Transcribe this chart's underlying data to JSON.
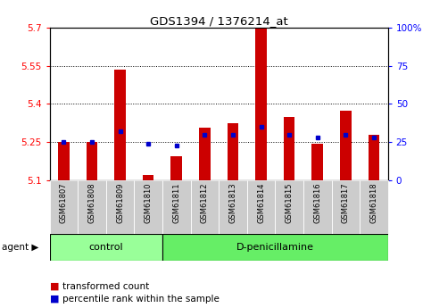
{
  "title": "GDS1394 / 1376214_at",
  "samples": [
    "GSM61807",
    "GSM61808",
    "GSM61809",
    "GSM61810",
    "GSM61811",
    "GSM61812",
    "GSM61813",
    "GSM61814",
    "GSM61815",
    "GSM61816",
    "GSM61817",
    "GSM61818"
  ],
  "transformed_count": [
    5.25,
    5.25,
    5.535,
    5.12,
    5.195,
    5.305,
    5.325,
    5.7,
    5.35,
    5.245,
    5.375,
    5.28
  ],
  "percentile_rank_pct": [
    25,
    25,
    32,
    24,
    23,
    30,
    30,
    35,
    30,
    28,
    30,
    28
  ],
  "bar_bottom": 5.1,
  "ylim_left": [
    5.1,
    5.7
  ],
  "ylim_right": [
    0,
    100
  ],
  "yticks_left": [
    5.1,
    5.25,
    5.4,
    5.55,
    5.7
  ],
  "ytick_labels_left": [
    "5.1",
    "5.25",
    "5.4",
    "5.55",
    "5.7"
  ],
  "yticks_right": [
    0,
    25,
    50,
    75,
    100
  ],
  "ytick_labels_right": [
    "0",
    "25",
    "50",
    "75",
    "100%"
  ],
  "hlines": [
    5.25,
    5.4,
    5.55
  ],
  "n_control": 4,
  "n_dpen": 8,
  "bar_color": "#cc0000",
  "dot_color": "#0000cc",
  "control_box_color": "#99ff99",
  "dpen_box_color": "#66ee66",
  "sample_label_bg": "#cccccc",
  "legend_bar_label": "transformed count",
  "legend_dot_label": "percentile rank within the sample",
  "agent_label": "agent",
  "control_label": "control",
  "dpen_label": "D-penicillamine",
  "bar_width": 0.4
}
